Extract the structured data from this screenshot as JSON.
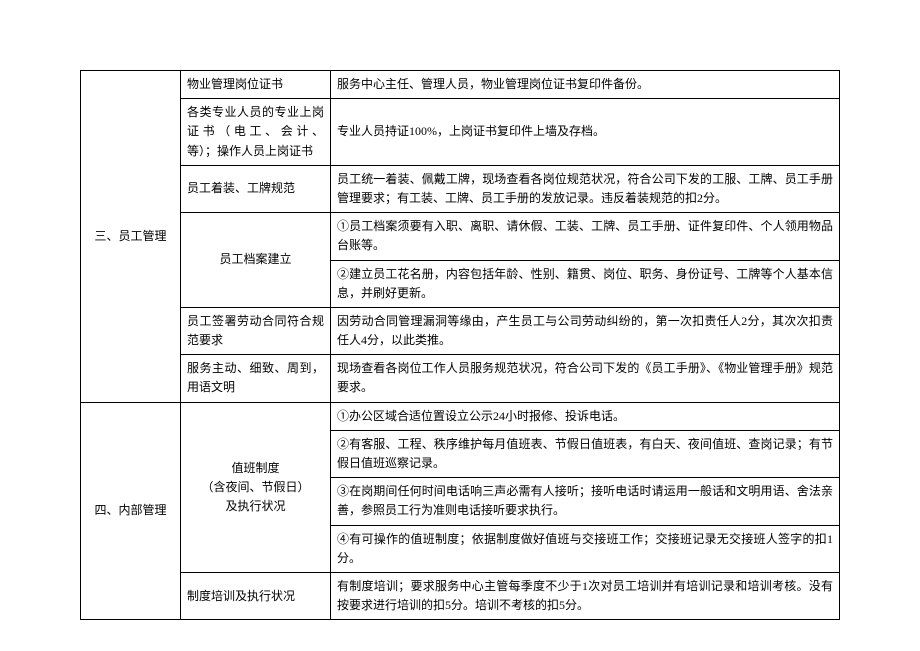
{
  "section3": {
    "title": "三、员工管理",
    "rows": [
      {
        "item": "物业管理岗位证书",
        "desc": "服务中心主任、管理人员，物业管理岗位证书复印件备份。"
      },
      {
        "item": "各类专业人员的专业上岗证书（电工、会计、等）；操作人员上岗证书",
        "desc": "专业人员持证100%，上岗证书复印件上墙及存档。"
      },
      {
        "item": "员工着装、工牌规范",
        "desc": "员工统一着装、佩戴工牌，现场查看各岗位规范状况，符合公司下发的工服、工牌、员工手册管理要求；有工装、工牌、员工手册的发放记录。违反着装规范的扣2分。"
      },
      {
        "item": "员工档案建立",
        "desc1": "①员工档案须要有入职、离职、请休假、工装、工牌、员工手册、证件复印件、个人领用物品台账等。",
        "desc2": "②建立员工花名册，内容包括年龄、性别、籍贯、岗位、职务、身份证号、工牌等个人基本信息，并刷好更新。"
      },
      {
        "item": "员工签署劳动合同符合规范要求",
        "desc": "因劳动合同管理漏洞等缘由，产生员工与公司劳动纠纷的，第一次扣责任人2分，其次次扣责任人4分，以此类推。"
      },
      {
        "item": "服务主动、细致、周到，用语文明",
        "desc": "现场查看各岗位工作人员服务规范状况，符合公司下发的《员工手册》、《物业管理手册》规范要求。"
      }
    ]
  },
  "section4": {
    "title": "四、内部管理",
    "rows": [
      {
        "item": "值班制度\n（含夜间、节假日）\n及执行状况",
        "d1": "①办公区域合适位置设立公示24小时报修、投诉电话。",
        "d2": "②有客服、工程、秩序维护每月值班表、节假日值班表，有白天、夜间值班、查岗记录；有节假日值班巡察记录。",
        "d3": "③在岗期间任何时间电话响三声必需有人接听；接听电话时请运用一般话和文明用语、舍法亲善，参照员工行为准则电话接听要求执行。",
        "d4": "④有可操作的值班制度；依据制度做好值班与交接班工作；交接班记录无交接班人签字的扣1分。"
      },
      {
        "item": "制度培训及执行状况",
        "desc": "有制度培训；要求服务中心主管每季度不少于1次对员工培训并有培训记录和培训考核。没有按要求进行培训的扣5分。培训不考核的扣5分。"
      }
    ]
  }
}
